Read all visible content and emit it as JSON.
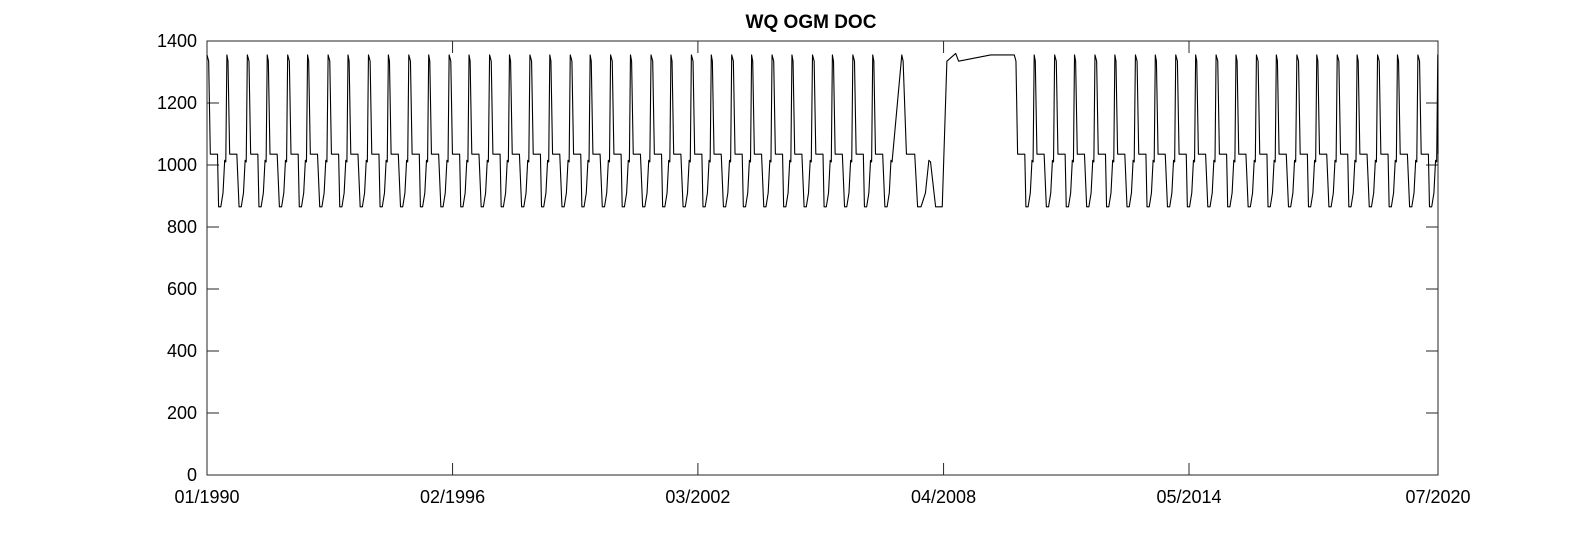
{
  "chart_data": {
    "type": "line",
    "title": "WQ OGM DOC",
    "xlabel": "",
    "ylabel": "",
    "x_axis_type": "date",
    "xlim": [
      "1990-01-01",
      "2020-07-01"
    ],
    "ylim": [
      0,
      1400
    ],
    "x_ticks": [
      "01/1990",
      "02/1996",
      "03/2002",
      "04/2008",
      "05/2014",
      "07/2020"
    ],
    "y_ticks": [
      0,
      200,
      400,
      600,
      800,
      1000,
      1200,
      1400
    ],
    "grid": false,
    "legend": "none",
    "line_color": "#000000",
    "cycle_profile": {
      "description": "annual cycle repeated each year; day-of-year to value",
      "points": [
        [
          0,
          1355
        ],
        [
          15,
          1335
        ],
        [
          30,
          1035
        ],
        [
          95,
          1035
        ],
        [
          105,
          865
        ],
        [
          125,
          865
        ],
        [
          145,
          910
        ],
        [
          160,
          1015
        ],
        [
          170,
          1010
        ],
        [
          180,
          1355
        ],
        [
          190,
          1335
        ],
        [
          205,
          1035
        ],
        [
          270,
          1035
        ],
        [
          290,
          865
        ],
        [
          310,
          865
        ],
        [
          330,
          910
        ],
        [
          345,
          1015
        ],
        [
          355,
          1010
        ],
        [
          365,
          1355
        ]
      ]
    },
    "cycle_years": [
      1990,
      2007
    ],
    "gap_segment": [
      [
        "2007-03-20",
        1355
      ],
      [
        "2007-04-01",
        1335
      ],
      [
        "2007-05-01",
        1035
      ],
      [
        "2007-07-15",
        1035
      ],
      [
        "2007-08-10",
        865
      ],
      [
        "2007-09-10",
        865
      ],
      [
        "2007-10-20",
        910
      ],
      [
        "2007-11-20",
        1015
      ],
      [
        "2007-12-05",
        1010
      ],
      [
        "2008-01-20",
        865
      ],
      [
        "2008-03-20",
        865
      ],
      [
        "2008-05-01",
        1335
      ],
      [
        "2008-07-20",
        1360
      ],
      [
        "2008-08-15",
        1335
      ],
      [
        "2009-06-01",
        1355
      ]
    ],
    "series": [
      {
        "values_ref": "cycle_profile+gap_segment"
      }
    ]
  }
}
